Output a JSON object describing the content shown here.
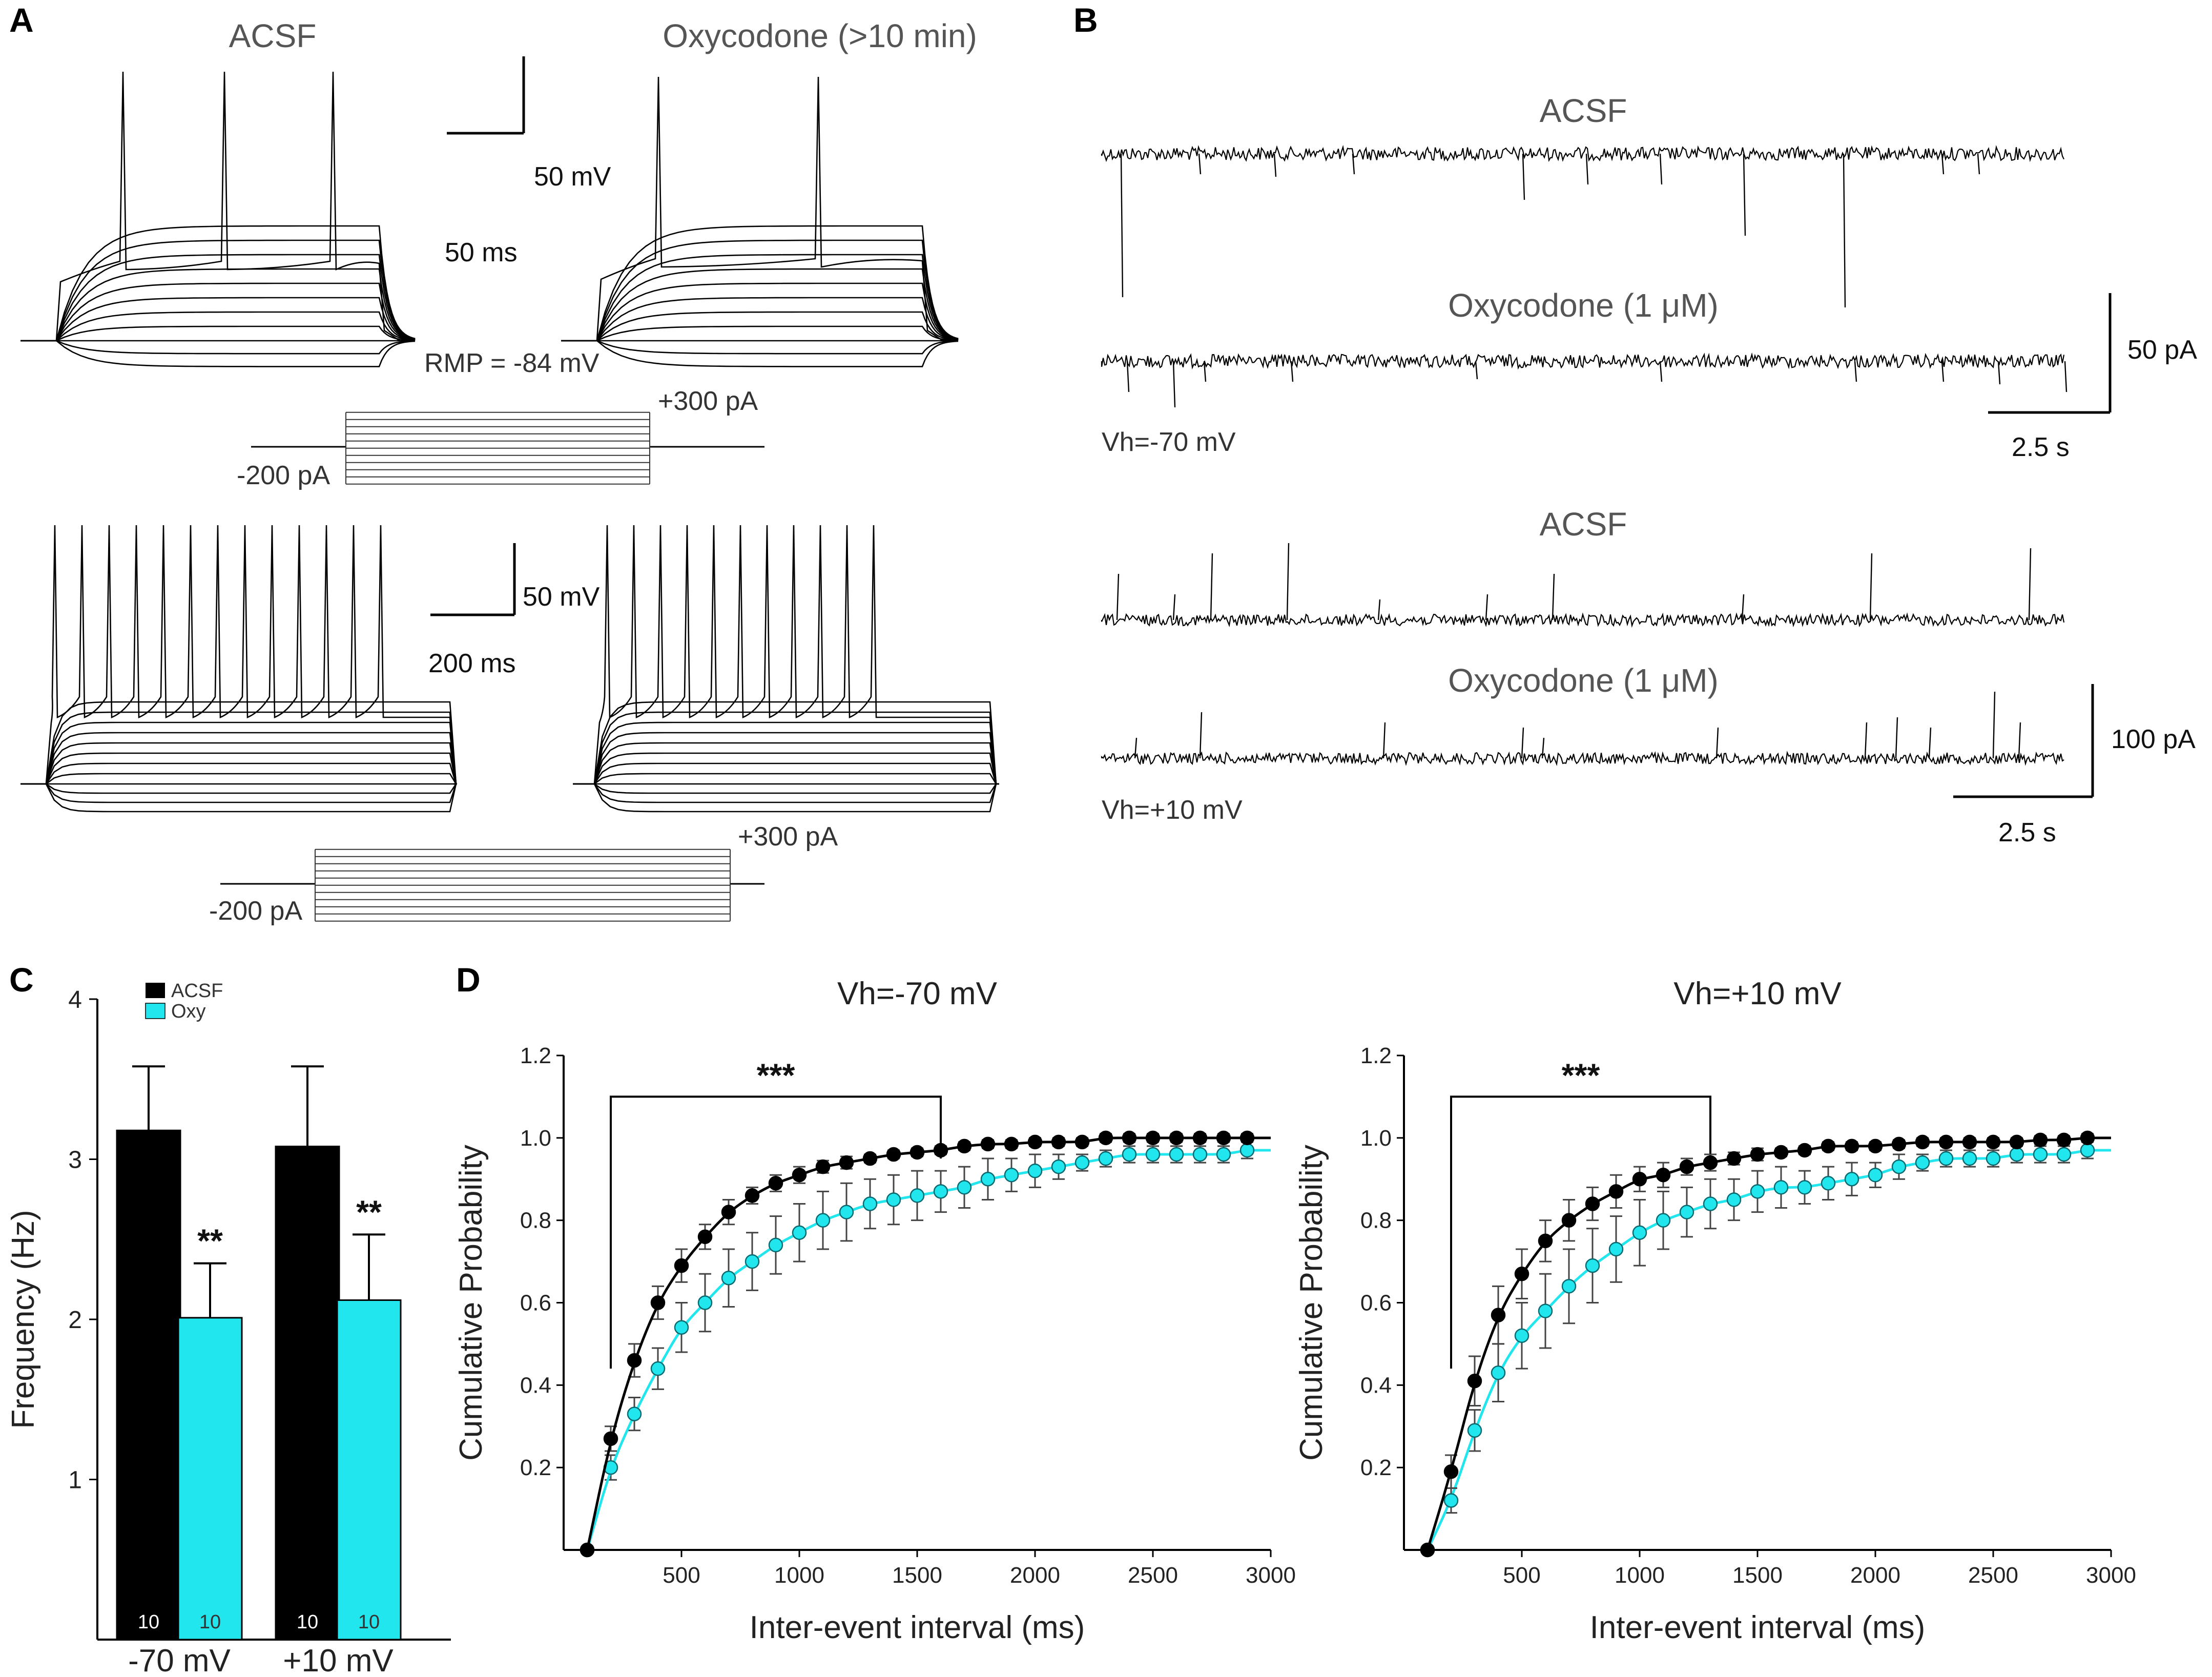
{
  "panels": {
    "a": "A",
    "b": "B",
    "c": "C",
    "d": "D"
  },
  "panel_a": {
    "top_left_title": "ACSF",
    "top_right_title": "Oxycodone (>10 min)",
    "top_scale_v": "50 mV",
    "top_scale_t": "50 ms",
    "rmp": "RMP = -84 mV",
    "top_step_max": "+300 pA",
    "top_step_min": "-200 pA",
    "bottom_scale_v": "50 mV",
    "bottom_scale_t": "200 ms",
    "bottom_step_max": "+300 pA",
    "bottom_step_min": "-200 pA"
  },
  "panel_b": {
    "t1": "ACSF",
    "t2": "Oxycodone (1 μM)",
    "scale1_i": "50 pA",
    "scale1_t": "2.5 s",
    "vh1": "Vh=-70 mV",
    "t3": "ACSF",
    "t4": "Oxycodone (1 μM)",
    "scale2_i": "100 pA",
    "scale2_t": "2.5 s",
    "vh2": "Vh=+10 mV"
  },
  "colors": {
    "acsf": "#000000",
    "oxy": "#22e6ee"
  },
  "chart_data": [
    {
      "id": "C",
      "type": "bar",
      "title": "",
      "ylabel": "Frequency (Hz)",
      "xlabel": "",
      "ylim": [
        0,
        4
      ],
      "yticks": [
        1,
        2,
        3,
        4
      ],
      "categories": [
        "-70 mV",
        "+10 mV"
      ],
      "legend": [
        "ACSF",
        "Oxy"
      ],
      "series": [
        {
          "name": "ACSF",
          "values": [
            3.18,
            3.08
          ],
          "errors": [
            0.4,
            0.5
          ],
          "n": [
            "10",
            "10"
          ]
        },
        {
          "name": "Oxy",
          "values": [
            2.01,
            2.12
          ],
          "errors": [
            0.34,
            0.41
          ],
          "n": [
            "10",
            "10"
          ]
        }
      ],
      "annotations": [
        "**",
        "**"
      ]
    },
    {
      "id": "D1",
      "type": "line",
      "title": "Vh=-70 mV",
      "xlabel": "Inter-event interval (ms)",
      "ylabel": "Cumulative Probability",
      "xlim": [
        0,
        3000
      ],
      "ylim": [
        0,
        1.2
      ],
      "xticks": [
        500,
        1000,
        1500,
        2000,
        2500,
        3000
      ],
      "yticks": [
        "0.2",
        "0.4",
        "0.6",
        "0.8",
        "1.0",
        "1.2"
      ],
      "sig": "***",
      "sig_range": [
        200,
        1600
      ],
      "x": [
        200,
        300,
        400,
        500,
        600,
        700,
        800,
        900,
        1000,
        1100,
        1200,
        1300,
        1400,
        1500,
        1600,
        1700,
        1800,
        1900,
        2000,
        2100,
        2200,
        2300,
        2400,
        2500,
        2600,
        2700,
        2800,
        2900
      ],
      "series": [
        {
          "name": "ACSF",
          "start": [
            100,
            0
          ],
          "values": [
            0.27,
            0.46,
            0.6,
            0.69,
            0.76,
            0.82,
            0.86,
            0.89,
            0.91,
            0.93,
            0.94,
            0.95,
            0.96,
            0.965,
            0.97,
            0.98,
            0.985,
            0.985,
            0.99,
            0.99,
            0.99,
            1.0,
            1.0,
            1.0,
            1.0,
            1.0,
            1.0,
            1.0
          ],
          "errors": [
            0.03,
            0.04,
            0.04,
            0.04,
            0.03,
            0.03,
            0.02,
            0.02,
            0.02,
            0.015,
            0.015,
            0.01,
            0.01,
            0.01,
            0.01,
            0.01,
            0.01,
            0.01,
            0.01,
            0.01,
            0.01,
            0.01,
            0.01,
            0.01,
            0.01,
            0.01,
            0.01,
            0.01
          ]
        },
        {
          "name": "Oxy",
          "start": [
            100,
            0
          ],
          "values": [
            0.2,
            0.33,
            0.44,
            0.54,
            0.6,
            0.66,
            0.7,
            0.74,
            0.77,
            0.8,
            0.82,
            0.84,
            0.85,
            0.86,
            0.87,
            0.88,
            0.9,
            0.91,
            0.92,
            0.93,
            0.94,
            0.95,
            0.96,
            0.96,
            0.96,
            0.96,
            0.96,
            0.97
          ],
          "errors": [
            0.03,
            0.04,
            0.05,
            0.06,
            0.07,
            0.07,
            0.07,
            0.07,
            0.07,
            0.07,
            0.07,
            0.06,
            0.06,
            0.06,
            0.05,
            0.05,
            0.05,
            0.04,
            0.04,
            0.03,
            0.02,
            0.02,
            0.02,
            0.02,
            0.02,
            0.02,
            0.02,
            0.02
          ]
        }
      ]
    },
    {
      "id": "D2",
      "type": "line",
      "title": "Vh=+10 mV",
      "xlabel": "Inter-event interval (ms)",
      "ylabel": "Cumulative Probability",
      "xlim": [
        0,
        3000
      ],
      "ylim": [
        0,
        1.2
      ],
      "xticks": [
        500,
        1000,
        1500,
        2000,
        2500,
        3000
      ],
      "yticks": [
        "0.2",
        "0.4",
        "0.6",
        "0.8",
        "1.0",
        "1.2"
      ],
      "sig": "***",
      "sig_range": [
        200,
        1300
      ],
      "x": [
        200,
        300,
        400,
        500,
        600,
        700,
        800,
        900,
        1000,
        1100,
        1200,
        1300,
        1400,
        1500,
        1600,
        1700,
        1800,
        1900,
        2000,
        2100,
        2200,
        2300,
        2400,
        2500,
        2600,
        2700,
        2800,
        2900
      ],
      "series": [
        {
          "name": "ACSF",
          "start": [
            100,
            0
          ],
          "values": [
            0.19,
            0.41,
            0.57,
            0.67,
            0.75,
            0.8,
            0.84,
            0.87,
            0.9,
            0.91,
            0.93,
            0.94,
            0.95,
            0.96,
            0.965,
            0.97,
            0.98,
            0.98,
            0.98,
            0.985,
            0.99,
            0.99,
            0.99,
            0.99,
            0.99,
            0.995,
            0.995,
            1.0
          ],
          "errors": [
            0.04,
            0.06,
            0.07,
            0.06,
            0.05,
            0.05,
            0.04,
            0.04,
            0.03,
            0.03,
            0.02,
            0.02,
            0.015,
            0.015,
            0.01,
            0.01,
            0.01,
            0.01,
            0.01,
            0.01,
            0.01,
            0.01,
            0.01,
            0.01,
            0.01,
            0.01,
            0.01,
            0.01
          ]
        },
        {
          "name": "Oxy",
          "start": [
            100,
            0
          ],
          "values": [
            0.12,
            0.29,
            0.43,
            0.52,
            0.58,
            0.64,
            0.69,
            0.73,
            0.77,
            0.8,
            0.82,
            0.84,
            0.85,
            0.87,
            0.88,
            0.88,
            0.89,
            0.9,
            0.91,
            0.93,
            0.94,
            0.95,
            0.95,
            0.95,
            0.96,
            0.96,
            0.96,
            0.97
          ],
          "errors": [
            0.03,
            0.05,
            0.07,
            0.08,
            0.09,
            0.09,
            0.09,
            0.08,
            0.08,
            0.07,
            0.06,
            0.06,
            0.05,
            0.05,
            0.05,
            0.04,
            0.04,
            0.04,
            0.03,
            0.03,
            0.02,
            0.02,
            0.02,
            0.02,
            0.02,
            0.02,
            0.02,
            0.02
          ]
        }
      ]
    }
  ]
}
